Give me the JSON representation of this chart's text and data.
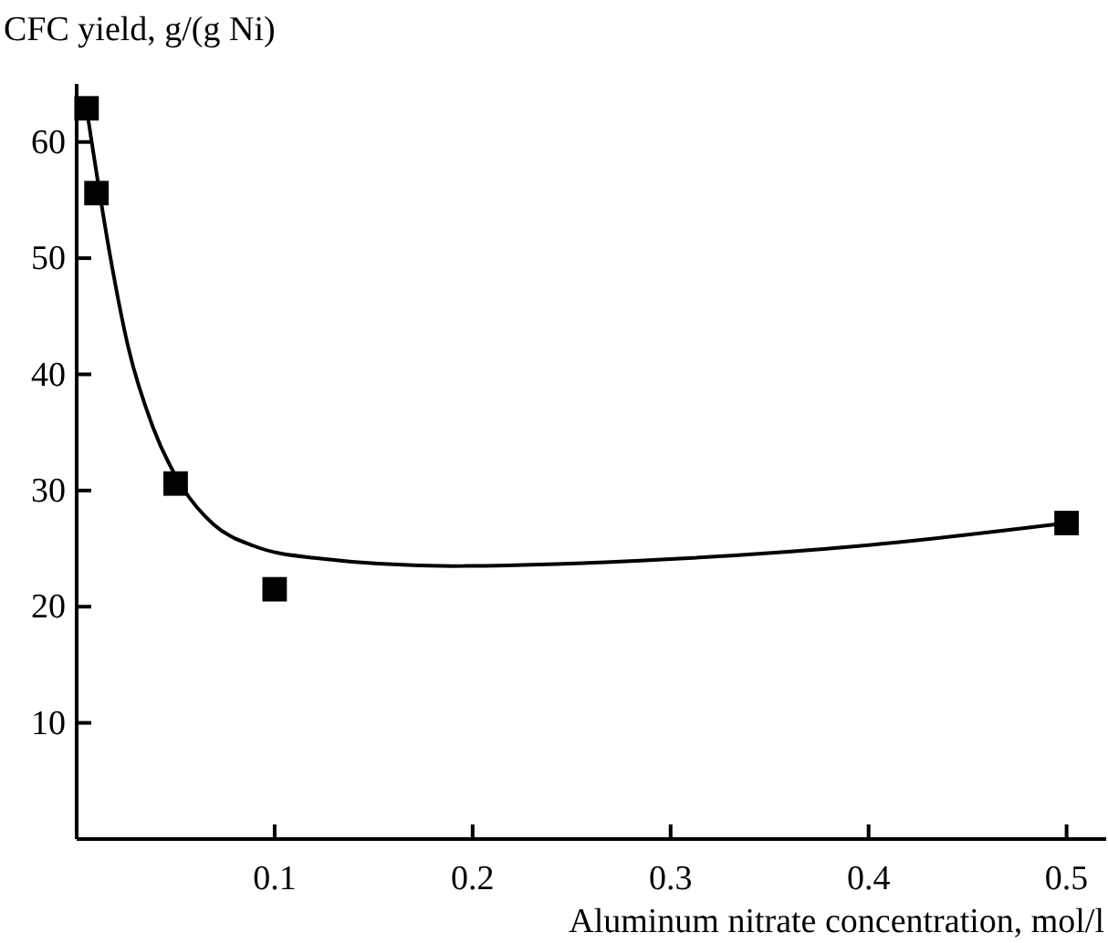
{
  "chart_data": {
    "type": "scatter",
    "xlabel": "Aluminum nitrate concentration, mol/l",
    "ylabel": "CFC yield, g/(g Ni)",
    "xlim": [
      0,
      0.52
    ],
    "xticks": [
      0.1,
      0.2,
      0.3,
      0.4,
      0.5
    ],
    "ylim": [
      0,
      65
    ],
    "yticks": [
      10,
      20,
      30,
      40,
      50,
      60
    ],
    "grid": false,
    "series": [
      {
        "color": "#000000",
        "marker": "square",
        "x": [
          0.005,
          0.01,
          0.05,
          0.1,
          0.5
        ],
        "values": [
          62.9,
          55.6,
          30.6,
          21.5,
          27.2
        ]
      },
      {
        "type": "line",
        "color": "#000000",
        "marker": "none",
        "line_style": "solid",
        "x": [
          0.005,
          0.0076,
          0.0168,
          0.0261,
          0.0384,
          0.0537,
          0.069,
          0.09,
          0.12,
          0.19,
          0.3,
          0.4,
          0.5
        ],
        "values": [
          62.9,
          60,
          50.3,
          42.3,
          35.5,
          30.2,
          27.1,
          25.2,
          24.2,
          23.5,
          24.1,
          25.3,
          27.2
        ]
      }
    ]
  }
}
